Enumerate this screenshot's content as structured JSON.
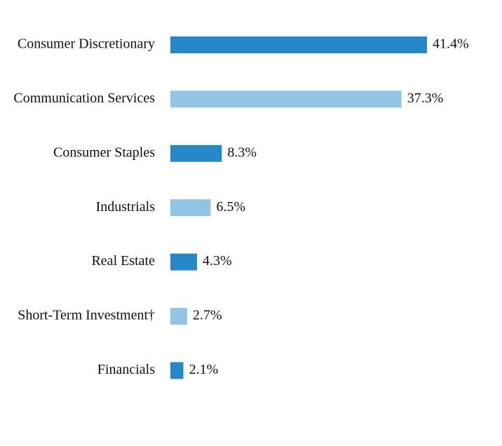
{
  "chart_data": {
    "type": "bar",
    "orientation": "horizontal",
    "categories": [
      "Consumer Discretionary",
      "Communication Services",
      "Consumer Staples",
      "Industrials",
      "Real Estate",
      "Short-Term Investment†",
      "Financials"
    ],
    "values": [
      41.4,
      37.3,
      8.3,
      6.5,
      4.3,
      2.7,
      2.1
    ],
    "value_labels": [
      "41.4%",
      "37.3%",
      "8.3%",
      "6.5%",
      "4.3%",
      "2.7%",
      "2.1%"
    ],
    "colors": [
      "#2788c8",
      "#93c4e3",
      "#2788c8",
      "#93c4e3",
      "#2788c8",
      "#93c4e3",
      "#2788c8"
    ]
  }
}
